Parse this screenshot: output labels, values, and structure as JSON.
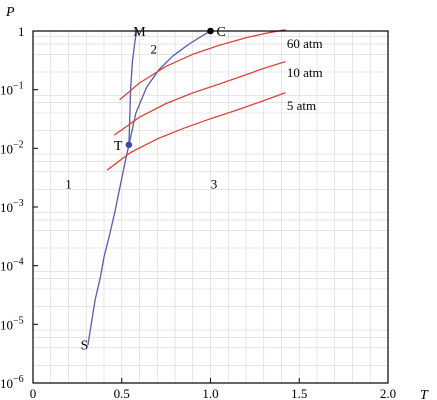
{
  "chart_data": {
    "type": "line",
    "title": "",
    "xlabel": "T",
    "ylabel": "P",
    "xlim": [
      0,
      2.0
    ],
    "ylim": [
      1e-06,
      1
    ],
    "yscale": "log",
    "grid": true,
    "x_ticks": [
      {
        "value": 0,
        "label": "0"
      },
      {
        "value": 0.5,
        "label": "0.5"
      },
      {
        "value": 1.0,
        "label": "1.0"
      },
      {
        "value": 1.5,
        "label": "1.5"
      },
      {
        "value": 2.0,
        "label": "2.0"
      }
    ],
    "y_ticks": [
      {
        "value": 1,
        "label": "1",
        "exp": ""
      },
      {
        "value": 0.1,
        "label": "10",
        "exp": "−1"
      },
      {
        "value": 0.01,
        "label": "10",
        "exp": "−2"
      },
      {
        "value": 0.001,
        "label": "10",
        "exp": "−3"
      },
      {
        "value": 0.0001,
        "label": "10",
        "exp": "−4"
      },
      {
        "value": 1e-05,
        "label": "10",
        "exp": "−5"
      },
      {
        "value": 1e-06,
        "label": "10",
        "exp": "−6"
      }
    ],
    "series": [
      {
        "name": "",
        "role": "sublimation curve S–T",
        "color": "#5a5aa8",
        "points": [
          [
            0.31,
            4.5e-06
          ],
          [
            0.33,
            1.1e-05
          ],
          [
            0.35,
            2.6e-05
          ],
          [
            0.38,
            6.5e-05
          ],
          [
            0.4,
            0.00014
          ],
          [
            0.43,
            0.00032
          ],
          [
            0.46,
            0.0008
          ],
          [
            0.49,
            0.0022
          ],
          [
            0.52,
            0.006
          ],
          [
            0.54,
            0.0115
          ]
        ]
      },
      {
        "name": "",
        "role": "melting curve T–M",
        "color": "#5a5aa8",
        "points": [
          [
            0.54,
            0.0115
          ],
          [
            0.545,
            0.03
          ],
          [
            0.55,
            0.1
          ],
          [
            0.56,
            0.3
          ],
          [
            0.575,
            0.7
          ],
          [
            0.585,
            1.0
          ]
        ]
      },
      {
        "name": "",
        "role": "vaporization curve T–C",
        "color": "#5a5aa8",
        "points": [
          [
            0.54,
            0.0115
          ],
          [
            0.58,
            0.04
          ],
          [
            0.64,
            0.11
          ],
          [
            0.71,
            0.22
          ],
          [
            0.79,
            0.38
          ],
          [
            0.88,
            0.6
          ],
          [
            0.96,
            0.85
          ],
          [
            1.0,
            1.0
          ]
        ]
      },
      {
        "name": "60 atm",
        "color": "#d8453a",
        "points": [
          [
            0.49,
            0.068
          ],
          [
            0.6,
            0.13
          ],
          [
            0.75,
            0.25
          ],
          [
            0.9,
            0.4
          ],
          [
            1.05,
            0.57
          ],
          [
            1.2,
            0.77
          ],
          [
            1.3,
            0.9
          ],
          [
            1.42,
            1.05
          ]
        ]
      },
      {
        "name": "10 atm",
        "color": "#d8453a",
        "points": [
          [
            0.46,
            0.017
          ],
          [
            0.6,
            0.034
          ],
          [
            0.75,
            0.058
          ],
          [
            0.9,
            0.088
          ],
          [
            1.05,
            0.125
          ],
          [
            1.2,
            0.18
          ],
          [
            1.3,
            0.23
          ],
          [
            1.42,
            0.3
          ]
        ]
      },
      {
        "name": "5 atm",
        "color": "#d8453a",
        "points": [
          [
            0.42,
            0.0043
          ],
          [
            0.55,
            0.0085
          ],
          [
            0.7,
            0.0145
          ],
          [
            0.85,
            0.022
          ],
          [
            1.0,
            0.032
          ],
          [
            1.15,
            0.045
          ],
          [
            1.3,
            0.065
          ],
          [
            1.42,
            0.088
          ]
        ]
      }
    ],
    "points": [
      {
        "name": "C",
        "x": 1.0,
        "y": 1.0,
        "color": "#000000"
      },
      {
        "name": "T",
        "x": 0.54,
        "y": 0.0115,
        "color": "#4444aa"
      }
    ],
    "annotations": [
      {
        "text": "S",
        "x": 0.29,
        "y": 4.5e-06,
        "kind": "point-label"
      },
      {
        "text": "M",
        "x": 0.6,
        "y": 1.0,
        "kind": "point-label"
      },
      {
        "text": "C",
        "x": 1.06,
        "y": 1.0,
        "kind": "point-label"
      },
      {
        "text": "T",
        "x": 0.48,
        "y": 0.0115,
        "kind": "point-label"
      },
      {
        "text": "1",
        "x": 0.2,
        "y": 0.0025,
        "kind": "region-label"
      },
      {
        "text": "2",
        "x": 0.68,
        "y": 0.5,
        "kind": "region-label"
      },
      {
        "text": "3",
        "x": 1.02,
        "y": 0.0025,
        "kind": "region-label"
      },
      {
        "text": "60 atm",
        "x": 1.43,
        "y": 0.63,
        "kind": "curve-label"
      },
      {
        "text": "10 atm",
        "x": 1.43,
        "y": 0.2,
        "kind": "curve-label"
      },
      {
        "text": "5 atm",
        "x": 1.43,
        "y": 0.055,
        "kind": "curve-label"
      }
    ]
  }
}
